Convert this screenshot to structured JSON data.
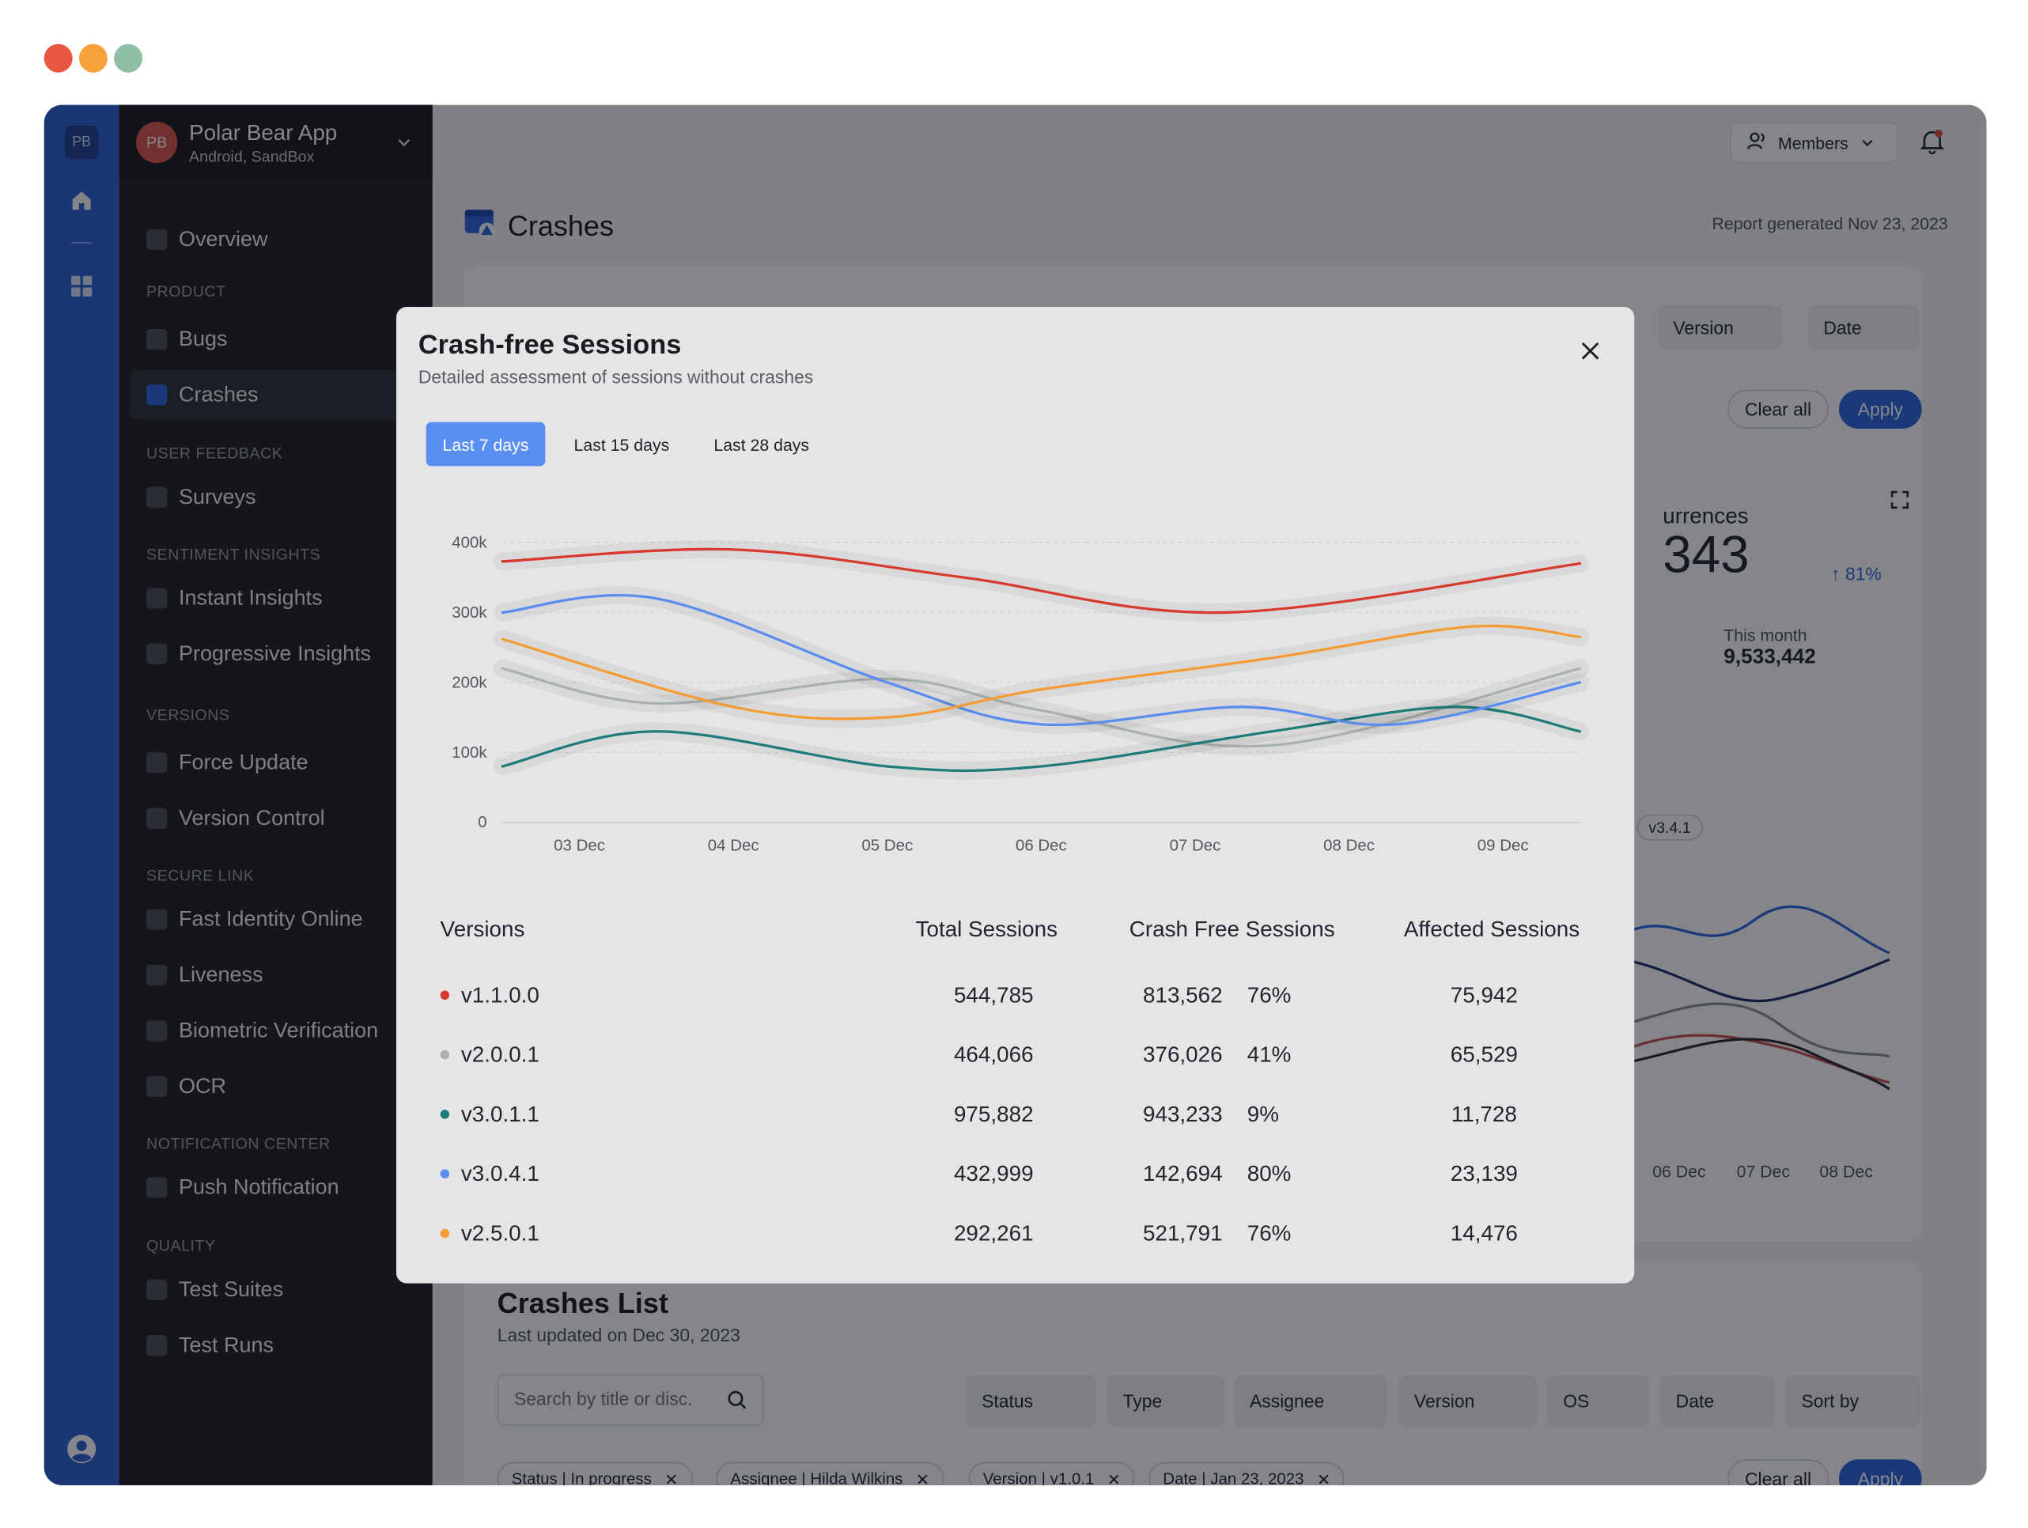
{
  "window_controls": {
    "colors": [
      "#e9553e",
      "#f4a239",
      "#8fbfa5"
    ]
  },
  "rail": {
    "badge": "PB",
    "icons": [
      "home-icon",
      "grid-icon",
      "user-circle-icon"
    ]
  },
  "sidebar": {
    "app_initials": "PB",
    "app_name": "Polar Bear App",
    "app_env": "Android, SandBox",
    "overview": "Overview",
    "sections": {
      "product": "PRODUCT",
      "user_feedback": "USER FEEDBACK",
      "sentiment": "SENTIMENT INSIGHTS",
      "versions": "VERSIONS",
      "secure_link": "SECURE LINK",
      "notification": "NOTIFICATION CENTER",
      "quality": "QUALITY"
    },
    "items": {
      "bugs": "Bugs",
      "crashes": "Crashes",
      "surveys": "Surveys",
      "instant": "Instant Insights",
      "progressive": "Progressive Insights",
      "force_update": "Force Update",
      "version_control": "Version Control",
      "fast_identity": "Fast Identity Online",
      "liveness": "Liveness",
      "biometric": "Biometric Verification",
      "ocr": "OCR",
      "push": "Push Notification",
      "test_suites": "Test Suites",
      "test_runs": "Test Runs"
    }
  },
  "header": {
    "members": "Members",
    "page_title": "Crashes",
    "report": "Report generated Nov 23, 2023"
  },
  "background": {
    "filters": {
      "version": "Version",
      "date": "Date",
      "clear_all": "Clear all",
      "apply": "Apply"
    },
    "occurrences": {
      "label": "urrences",
      "value": "343",
      "delta": "81%",
      "month_label": "This month",
      "month_value": "9,533,442"
    },
    "legend_tag": "v3.4.1",
    "x_ticks": [
      "06 Dec",
      "07 Dec",
      "08 Dec"
    ],
    "crashes_list": {
      "title": "Crashes List",
      "updated": "Last updated on Dec 30, 2023",
      "search_placeholder": "Search by title or disc.",
      "filters": [
        "Status",
        "Type",
        "Assignee",
        "Version",
        "OS",
        "Date",
        "Sort by"
      ],
      "chips": [
        "Status | In progress",
        "Assignee | Hilda Wilkins",
        "Version | v1.0.1",
        "Date | Jan 23, 2023"
      ],
      "clear_all": "Clear all",
      "apply": "Apply"
    }
  },
  "modal": {
    "title": "Crash-free Sessions",
    "subtitle": "Detailed assessment of sessions without crashes",
    "tabs": [
      "Last 7 days",
      "Last 15 days",
      "Last 28 days"
    ],
    "active_tab": 0,
    "table": {
      "headers": [
        "Versions",
        "Total Sessions",
        "Crash Free Sessions",
        "Affected Sessions"
      ],
      "rows": [
        {
          "version": "v1.1.0.0",
          "total": "544,785",
          "crash_free": "813,562",
          "pct": "76%",
          "affected": "75,942",
          "color": "#d83a2f"
        },
        {
          "version": "v2.0.0.1",
          "total": "464,066",
          "crash_free": "376,026",
          "pct": "41%",
          "affected": "65,529",
          "color": "#a9b1ad"
        },
        {
          "version": "v3.0.1.1",
          "total": "975,882",
          "crash_free": "943,233",
          "pct": "9%",
          "affected": "11,728",
          "color": "#1f7c7a"
        },
        {
          "version": "v3.0.4.1",
          "total": "432,999",
          "crash_free": "142,694",
          "pct": "80%",
          "affected": "23,139",
          "color": "#5b8def"
        },
        {
          "version": "v2.5.0.1",
          "total": "292,261",
          "crash_free": "521,791",
          "pct": "76%",
          "affected": "14,476",
          "color": "#f39c34"
        }
      ]
    }
  },
  "chart_data": {
    "type": "line",
    "title": "",
    "xlabel": "",
    "ylabel": "",
    "categories": [
      "03 Dec",
      "04 Dec",
      "05 Dec",
      "06 Dec",
      "07 Dec",
      "08 Dec",
      "09 Dec"
    ],
    "yticks": [
      "0",
      "100k",
      "200k",
      "300k",
      "400k"
    ],
    "ylim": [
      0,
      400000
    ],
    "grid": true,
    "x_start": 2.5,
    "x_end": 9.5,
    "series": [
      {
        "name": "v1.1.0.0",
        "color": "#d83a2f",
        "x": [
          2.5,
          4.0,
          5.5,
          7.2,
          9.5
        ],
        "values": [
          373000,
          390000,
          350000,
          300000,
          370000
        ]
      },
      {
        "name": "v2.0.0.1",
        "color": "#a9b1ad",
        "x": [
          2.5,
          3.5,
          5.0,
          6.0,
          7.5,
          9.5
        ],
        "values": [
          220000,
          170000,
          205000,
          160000,
          110000,
          220000
        ]
      },
      {
        "name": "v3.0.1.1",
        "color": "#1f7c7a",
        "x": [
          2.5,
          3.5,
          5.0,
          6.0,
          7.5,
          8.7,
          9.5
        ],
        "values": [
          80000,
          130000,
          80000,
          80000,
          130000,
          165000,
          130000
        ]
      },
      {
        "name": "v3.0.4.1",
        "color": "#5b8def",
        "x": [
          2.5,
          3.5,
          5.0,
          6.0,
          7.3,
          8.3,
          9.5
        ],
        "values": [
          300000,
          320000,
          200000,
          140000,
          165000,
          140000,
          200000
        ]
      },
      {
        "name": "v2.5.0.1",
        "color": "#f39c34",
        "x": [
          2.5,
          4.0,
          5.0,
          6.0,
          7.5,
          8.8,
          9.5
        ],
        "values": [
          262000,
          165000,
          150000,
          190000,
          235000,
          280000,
          265000
        ]
      }
    ]
  }
}
